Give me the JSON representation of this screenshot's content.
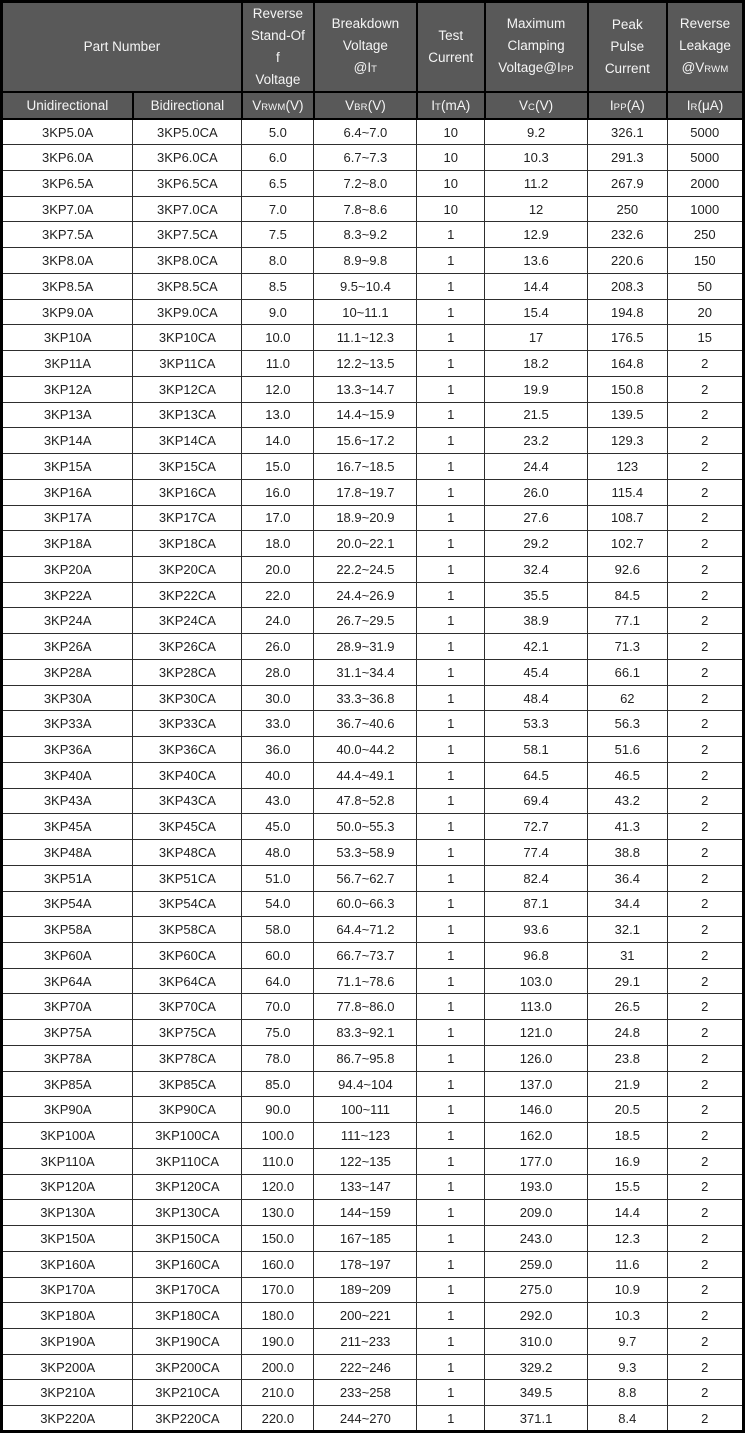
{
  "colors": {
    "header_bg": "#595959",
    "header_text": "#f5f5f5",
    "grid": "#2e2e2e",
    "outer_border": "#000000",
    "row_bg": "#ffffff",
    "body_text": "#1f1f1f"
  },
  "header": {
    "part_number": "Part Number",
    "reverse_standoff": "Reverse\nStand-Of\nf\nVoltage",
    "breakdown": {
      "l1": "Breakdown",
      "l2": "Voltage",
      "pre": "@I",
      "sub": "T"
    },
    "test_current": "Test\nCurrent",
    "clamping": {
      "l1": "Maximum",
      "l2": "Clamping",
      "pre": "Voltage@I",
      "sub": "PP"
    },
    "peak_pulse": "Peak\nPulse\nCurrent",
    "leakage": {
      "l1": "Reverse",
      "l2": "Leakage",
      "pre": "@V",
      "sub": "RWM"
    },
    "sub_row": {
      "unidirectional": "Unidirectional",
      "bidirectional": "Bidirectional",
      "vrwm": {
        "pre": "V",
        "sub": "RWM",
        "post": "(V)"
      },
      "vbr": {
        "pre": "V",
        "sub": "BR",
        "post": "(V)"
      },
      "it": {
        "pre": "I",
        "sub": "T",
        "post": "(mA)"
      },
      "vc": {
        "pre": "V",
        "sub": "C",
        "post": "(V)"
      },
      "ipp": {
        "pre": "I",
        "sub": "PP",
        "post": "(A)"
      },
      "ir": {
        "pre": "I",
        "sub": "R",
        "post": "(μA)"
      }
    }
  },
  "table": {
    "column_keys": [
      "unidirectional",
      "bidirectional",
      "vrwm_v",
      "vbr_v",
      "it_ma",
      "vc_v",
      "ipp_a",
      "ir_ua"
    ],
    "rows": [
      [
        "3KP5.0A",
        "3KP5.0CA",
        "5.0",
        "6.4~7.0",
        "10",
        "9.2",
        "326.1",
        "5000"
      ],
      [
        "3KP6.0A",
        "3KP6.0CA",
        "6.0",
        "6.7~7.3",
        "10",
        "10.3",
        "291.3",
        "5000"
      ],
      [
        "3KP6.5A",
        "3KP6.5CA",
        "6.5",
        "7.2~8.0",
        "10",
        "11.2",
        "267.9",
        "2000"
      ],
      [
        "3KP7.0A",
        "3KP7.0CA",
        "7.0",
        "7.8~8.6",
        "10",
        "12",
        "250",
        "1000"
      ],
      [
        "3KP7.5A",
        "3KP7.5CA",
        "7.5",
        "8.3~9.2",
        "1",
        "12.9",
        "232.6",
        "250"
      ],
      [
        "3KP8.0A",
        "3KP8.0CA",
        "8.0",
        "8.9~9.8",
        "1",
        "13.6",
        "220.6",
        "150"
      ],
      [
        "3KP8.5A",
        "3KP8.5CA",
        "8.5",
        "9.5~10.4",
        "1",
        "14.4",
        "208.3",
        "50"
      ],
      [
        "3KP9.0A",
        "3KP9.0CA",
        "9.0",
        "10~11.1",
        "1",
        "15.4",
        "194.8",
        "20"
      ],
      [
        "3KP10A",
        "3KP10CA",
        "10.0",
        "11.1~12.3",
        "1",
        "17",
        "176.5",
        "15"
      ],
      [
        "3KP11A",
        "3KP11CA",
        "11.0",
        "12.2~13.5",
        "1",
        "18.2",
        "164.8",
        "2"
      ],
      [
        "3KP12A",
        "3KP12CA",
        "12.0",
        "13.3~14.7",
        "1",
        "19.9",
        "150.8",
        "2"
      ],
      [
        "3KP13A",
        "3KP13CA",
        "13.0",
        "14.4~15.9",
        "1",
        "21.5",
        "139.5",
        "2"
      ],
      [
        "3KP14A",
        "3KP14CA",
        "14.0",
        "15.6~17.2",
        "1",
        "23.2",
        "129.3",
        "2"
      ],
      [
        "3KP15A",
        "3KP15CA",
        "15.0",
        "16.7~18.5",
        "1",
        "24.4",
        "123",
        "2"
      ],
      [
        "3KP16A",
        "3KP16CA",
        "16.0",
        "17.8~19.7",
        "1",
        "26.0",
        "115.4",
        "2"
      ],
      [
        "3KP17A",
        "3KP17CA",
        "17.0",
        "18.9~20.9",
        "1",
        "27.6",
        "108.7",
        "2"
      ],
      [
        "3KP18A",
        "3KP18CA",
        "18.0",
        "20.0~22.1",
        "1",
        "29.2",
        "102.7",
        "2"
      ],
      [
        "3KP20A",
        "3KP20CA",
        "20.0",
        "22.2~24.5",
        "1",
        "32.4",
        "92.6",
        "2"
      ],
      [
        "3KP22A",
        "3KP22CA",
        "22.0",
        "24.4~26.9",
        "1",
        "35.5",
        "84.5",
        "2"
      ],
      [
        "3KP24A",
        "3KP24CA",
        "24.0",
        "26.7~29.5",
        "1",
        "38.9",
        "77.1",
        "2"
      ],
      [
        "3KP26A",
        "3KP26CA",
        "26.0",
        "28.9~31.9",
        "1",
        "42.1",
        "71.3",
        "2"
      ],
      [
        "3KP28A",
        "3KP28CA",
        "28.0",
        "31.1~34.4",
        "1",
        "45.4",
        "66.1",
        "2"
      ],
      [
        "3KP30A",
        "3KP30CA",
        "30.0",
        "33.3~36.8",
        "1",
        "48.4",
        "62",
        "2"
      ],
      [
        "3KP33A",
        "3KP33CA",
        "33.0",
        "36.7~40.6",
        "1",
        "53.3",
        "56.3",
        "2"
      ],
      [
        "3KP36A",
        "3KP36CA",
        "36.0",
        "40.0~44.2",
        "1",
        "58.1",
        "51.6",
        "2"
      ],
      [
        "3KP40A",
        "3KP40CA",
        "40.0",
        "44.4~49.1",
        "1",
        "64.5",
        "46.5",
        "2"
      ],
      [
        "3KP43A",
        "3KP43CA",
        "43.0",
        "47.8~52.8",
        "1",
        "69.4",
        "43.2",
        "2"
      ],
      [
        "3KP45A",
        "3KP45CA",
        "45.0",
        "50.0~55.3",
        "1",
        "72.7",
        "41.3",
        "2"
      ],
      [
        "3KP48A",
        "3KP48CA",
        "48.0",
        "53.3~58.9",
        "1",
        "77.4",
        "38.8",
        "2"
      ],
      [
        "3KP51A",
        "3KP51CA",
        "51.0",
        "56.7~62.7",
        "1",
        "82.4",
        "36.4",
        "2"
      ],
      [
        "3KP54A",
        "3KP54CA",
        "54.0",
        "60.0~66.3",
        "1",
        "87.1",
        "34.4",
        "2"
      ],
      [
        "3KP58A",
        "3KP58CA",
        "58.0",
        "64.4~71.2",
        "1",
        "93.6",
        "32.1",
        "2"
      ],
      [
        "3KP60A",
        "3KP60CA",
        "60.0",
        "66.7~73.7",
        "1",
        "96.8",
        "31",
        "2"
      ],
      [
        "3KP64A",
        "3KP64CA",
        "64.0",
        "71.1~78.6",
        "1",
        "103.0",
        "29.1",
        "2"
      ],
      [
        "3KP70A",
        "3KP70CA",
        "70.0",
        "77.8~86.0",
        "1",
        "113.0",
        "26.5",
        "2"
      ],
      [
        "3KP75A",
        "3KP75CA",
        "75.0",
        "83.3~92.1",
        "1",
        "121.0",
        "24.8",
        "2"
      ],
      [
        "3KP78A",
        "3KP78CA",
        "78.0",
        "86.7~95.8",
        "1",
        "126.0",
        "23.8",
        "2"
      ],
      [
        "3KP85A",
        "3KP85CA",
        "85.0",
        "94.4~104",
        "1",
        "137.0",
        "21.9",
        "2"
      ],
      [
        "3KP90A",
        "3KP90CA",
        "90.0",
        "100~111",
        "1",
        "146.0",
        "20.5",
        "2"
      ],
      [
        "3KP100A",
        "3KP100CA",
        "100.0",
        "111~123",
        "1",
        "162.0",
        "18.5",
        "2"
      ],
      [
        "3KP110A",
        "3KP110CA",
        "110.0",
        "122~135",
        "1",
        "177.0",
        "16.9",
        "2"
      ],
      [
        "3KP120A",
        "3KP120CA",
        "120.0",
        "133~147",
        "1",
        "193.0",
        "15.5",
        "2"
      ],
      [
        "3KP130A",
        "3KP130CA",
        "130.0",
        "144~159",
        "1",
        "209.0",
        "14.4",
        "2"
      ],
      [
        "3KP150A",
        "3KP150CA",
        "150.0",
        "167~185",
        "1",
        "243.0",
        "12.3",
        "2"
      ],
      [
        "3KP160A",
        "3KP160CA",
        "160.0",
        "178~197",
        "1",
        "259.0",
        "11.6",
        "2"
      ],
      [
        "3KP170A",
        "3KP170CA",
        "170.0",
        "189~209",
        "1",
        "275.0",
        "10.9",
        "2"
      ],
      [
        "3KP180A",
        "3KP180CA",
        "180.0",
        "200~221",
        "1",
        "292.0",
        "10.3",
        "2"
      ],
      [
        "3KP190A",
        "3KP190CA",
        "190.0",
        "211~233",
        "1",
        "310.0",
        "9.7",
        "2"
      ],
      [
        "3KP200A",
        "3KP200CA",
        "200.0",
        "222~246",
        "1",
        "329.2",
        "9.3",
        "2"
      ],
      [
        "3KP210A",
        "3KP210CA",
        "210.0",
        "233~258",
        "1",
        "349.5",
        "8.8",
        "2"
      ],
      [
        "3KP220A",
        "3KP220CA",
        "220.0",
        "244~270",
        "1",
        "371.1",
        "8.4",
        "2"
      ]
    ]
  }
}
